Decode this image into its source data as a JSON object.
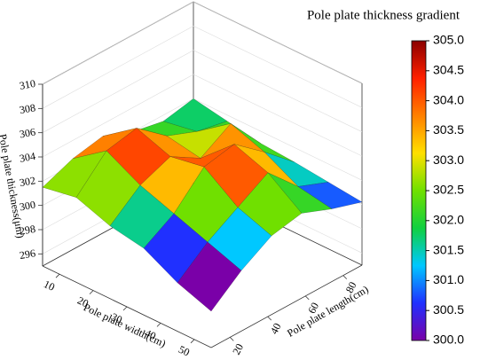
{
  "chart_data": {
    "type": "surface",
    "title": "Pole plate thickness gradient",
    "xlabel": "Pole plate width(cm)",
    "ylabel": "Pole plate length(cm)",
    "zlabel": "Pole plate thickness(μm)",
    "x": [
      5,
      15,
      25,
      35,
      45,
      55
    ],
    "y": [
      10,
      26,
      42,
      58,
      74,
      90
    ],
    "z": [
      [
        301.5,
        302.5,
        303,
        302,
        301.5,
        302
      ],
      [
        302,
        304.5,
        305,
        303,
        302,
        301.5
      ],
      [
        301,
        303,
        304,
        302.5,
        304,
        301
      ],
      [
        300.5,
        302,
        304.5,
        305,
        303,
        300.8
      ],
      [
        299,
        301,
        302.5,
        304,
        301.5,
        300.5
      ],
      [
        298,
        300,
        301.5,
        302,
        301,
        300.2
      ]
    ],
    "xlim": [
      5,
      55
    ],
    "ylim": [
      10,
      90
    ],
    "zlim": [
      295,
      310
    ],
    "xticks": [
      10,
      20,
      30,
      40,
      50
    ],
    "yticks": [
      20,
      40,
      60,
      80
    ],
    "zticks": [
      296,
      298,
      300,
      302,
      304,
      306,
      308,
      310
    ],
    "colorscale": [
      "#7a00a8",
      "#2030ff",
      "#00c8ff",
      "#10d040",
      "#70e000",
      "#ffe000",
      "#ff8000",
      "#ff2000",
      "#8b0000"
    ],
    "clim": [
      300,
      305
    ],
    "cticks": [
      {
        "value": 300,
        "label": "300.0"
      },
      {
        "value": 300.5,
        "label": "300.5"
      },
      {
        "value": 301,
        "label": "301.0"
      },
      {
        "value": 301.5,
        "label": "301.5"
      },
      {
        "value": 302,
        "label": "302.0"
      },
      {
        "value": 302.5,
        "label": "302.5"
      },
      {
        "value": 303,
        "label": "303.0"
      },
      {
        "value": 303.5,
        "label": "303.5"
      },
      {
        "value": 304,
        "label": "304.0"
      },
      {
        "value": 304.5,
        "label": "304.5"
      },
      {
        "value": 305,
        "label": "305.0"
      }
    ]
  }
}
